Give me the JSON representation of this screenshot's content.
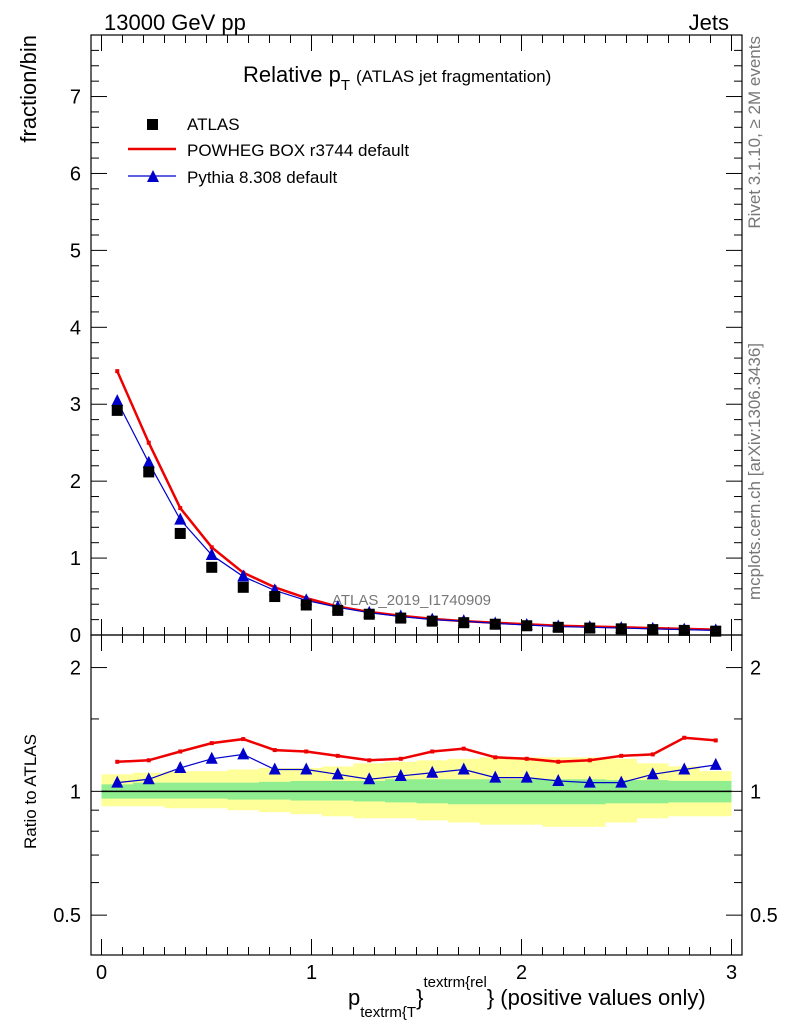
{
  "header": {
    "left": "13000 GeV pp",
    "right": "Jets"
  },
  "side_notes": {
    "rivet": "Rivet 3.1.10, ≥ 2M events",
    "mcplots": "mcplots.cern.ch [arXiv:1306.3436]"
  },
  "watermark": "ATLAS_2019_I1740909",
  "colors": {
    "data": "#000000",
    "powheg": "#ee0000",
    "pythia": "#0000cc",
    "band_inner": "#90ee90",
    "band_outer": "#ffff99"
  },
  "chart_data": [
    {
      "type": "scatter",
      "panel": "main",
      "title_main": "Relative p",
      "title_sub": "T",
      "title_rest": "(ATLAS jet fragmentation)",
      "ylabel": "fraction/bin",
      "xlim": [
        -0.05,
        3.05
      ],
      "ylim": [
        0,
        7.8
      ],
      "yticks": [
        0,
        1,
        2,
        3,
        4,
        5,
        6,
        7
      ],
      "ytick_labels": [
        "0",
        "1",
        "2",
        "3",
        "4",
        "5",
        "6",
        "7"
      ],
      "legend_position": "top-left",
      "x": [
        0.075,
        0.225,
        0.375,
        0.525,
        0.675,
        0.825,
        0.975,
        1.125,
        1.275,
        1.425,
        1.575,
        1.725,
        1.875,
        2.025,
        2.175,
        2.325,
        2.475,
        2.625,
        2.775,
        2.925
      ],
      "series": [
        {
          "name": "ATLAS",
          "marker": "square",
          "values": [
            2.92,
            2.12,
            1.32,
            0.88,
            0.62,
            0.5,
            0.39,
            0.32,
            0.27,
            0.22,
            0.18,
            0.16,
            0.14,
            0.12,
            0.1,
            0.09,
            0.08,
            0.07,
            0.06,
            0.05
          ]
        },
        {
          "name": "POWHEG BOX r3744 default",
          "marker": "line",
          "values": [
            3.43,
            2.5,
            1.65,
            1.14,
            0.81,
            0.62,
            0.48,
            0.37,
            0.3,
            0.25,
            0.21,
            0.18,
            0.16,
            0.14,
            0.12,
            0.11,
            0.1,
            0.09,
            0.08,
            0.07
          ]
        },
        {
          "name": "Pythia 8.308 default",
          "marker": "triangle",
          "values": [
            3.04,
            2.24,
            1.5,
            1.04,
            0.76,
            0.58,
            0.45,
            0.36,
            0.29,
            0.24,
            0.2,
            0.18,
            0.15,
            0.13,
            0.11,
            0.1,
            0.09,
            0.08,
            0.07,
            0.06
          ]
        }
      ]
    },
    {
      "type": "line",
      "panel": "ratio",
      "ylabel": "Ratio to ATLAS",
      "xlabel_main": "p",
      "xlabel_sub": "textrm{T",
      "xlabel_brace": "}",
      "xlabel_sup": "textrm{rel",
      "xlabel_end": "} (positive values only)",
      "xticks": [
        0,
        1,
        2,
        3
      ],
      "xtick_labels": [
        "0",
        "1",
        "2",
        "3"
      ],
      "xlim": [
        -0.05,
        3.05
      ],
      "ylim": [
        0.4,
        2.4
      ],
      "log_y": true,
      "yticks": [
        0.5,
        1,
        2
      ],
      "ytick_labels": [
        "0.5",
        "1",
        "2"
      ],
      "x": [
        0.075,
        0.225,
        0.375,
        0.525,
        0.675,
        0.825,
        0.975,
        1.125,
        1.275,
        1.425,
        1.575,
        1.725,
        1.875,
        2.025,
        2.175,
        2.325,
        2.475,
        2.625,
        2.775,
        2.925
      ],
      "bands": {
        "inner_low": [
          0.96,
          0.96,
          0.96,
          0.96,
          0.955,
          0.955,
          0.95,
          0.95,
          0.945,
          0.94,
          0.935,
          0.93,
          0.93,
          0.93,
          0.93,
          0.93,
          0.935,
          0.935,
          0.94,
          0.94
        ],
        "inner_high": [
          1.04,
          1.05,
          1.05,
          1.05,
          1.05,
          1.055,
          1.06,
          1.06,
          1.06,
          1.07,
          1.07,
          1.07,
          1.07,
          1.07,
          1.07,
          1.07,
          1.065,
          1.065,
          1.06,
          1.06
        ],
        "outer_low": [
          0.92,
          0.92,
          0.91,
          0.91,
          0.9,
          0.89,
          0.88,
          0.87,
          0.86,
          0.86,
          0.85,
          0.84,
          0.83,
          0.83,
          0.82,
          0.82,
          0.84,
          0.86,
          0.87,
          0.87
        ],
        "outer_high": [
          1.1,
          1.11,
          1.12,
          1.12,
          1.13,
          1.14,
          1.14,
          1.15,
          1.17,
          1.18,
          1.19,
          1.2,
          1.21,
          1.21,
          1.21,
          1.21,
          1.2,
          1.17,
          1.15,
          1.12
        ]
      },
      "series": [
        {
          "name": "POWHEG BOX r3744 default",
          "values": [
            1.18,
            1.19,
            1.25,
            1.31,
            1.34,
            1.26,
            1.25,
            1.22,
            1.19,
            1.2,
            1.25,
            1.27,
            1.21,
            1.2,
            1.18,
            1.19,
            1.22,
            1.23,
            1.35,
            1.33
          ]
        },
        {
          "name": "Pythia 8.308 default",
          "values": [
            1.05,
            1.07,
            1.14,
            1.2,
            1.23,
            1.13,
            1.13,
            1.1,
            1.07,
            1.09,
            1.11,
            1.13,
            1.08,
            1.08,
            1.06,
            1.05,
            1.05,
            1.1,
            1.13,
            1.16
          ]
        }
      ]
    }
  ]
}
